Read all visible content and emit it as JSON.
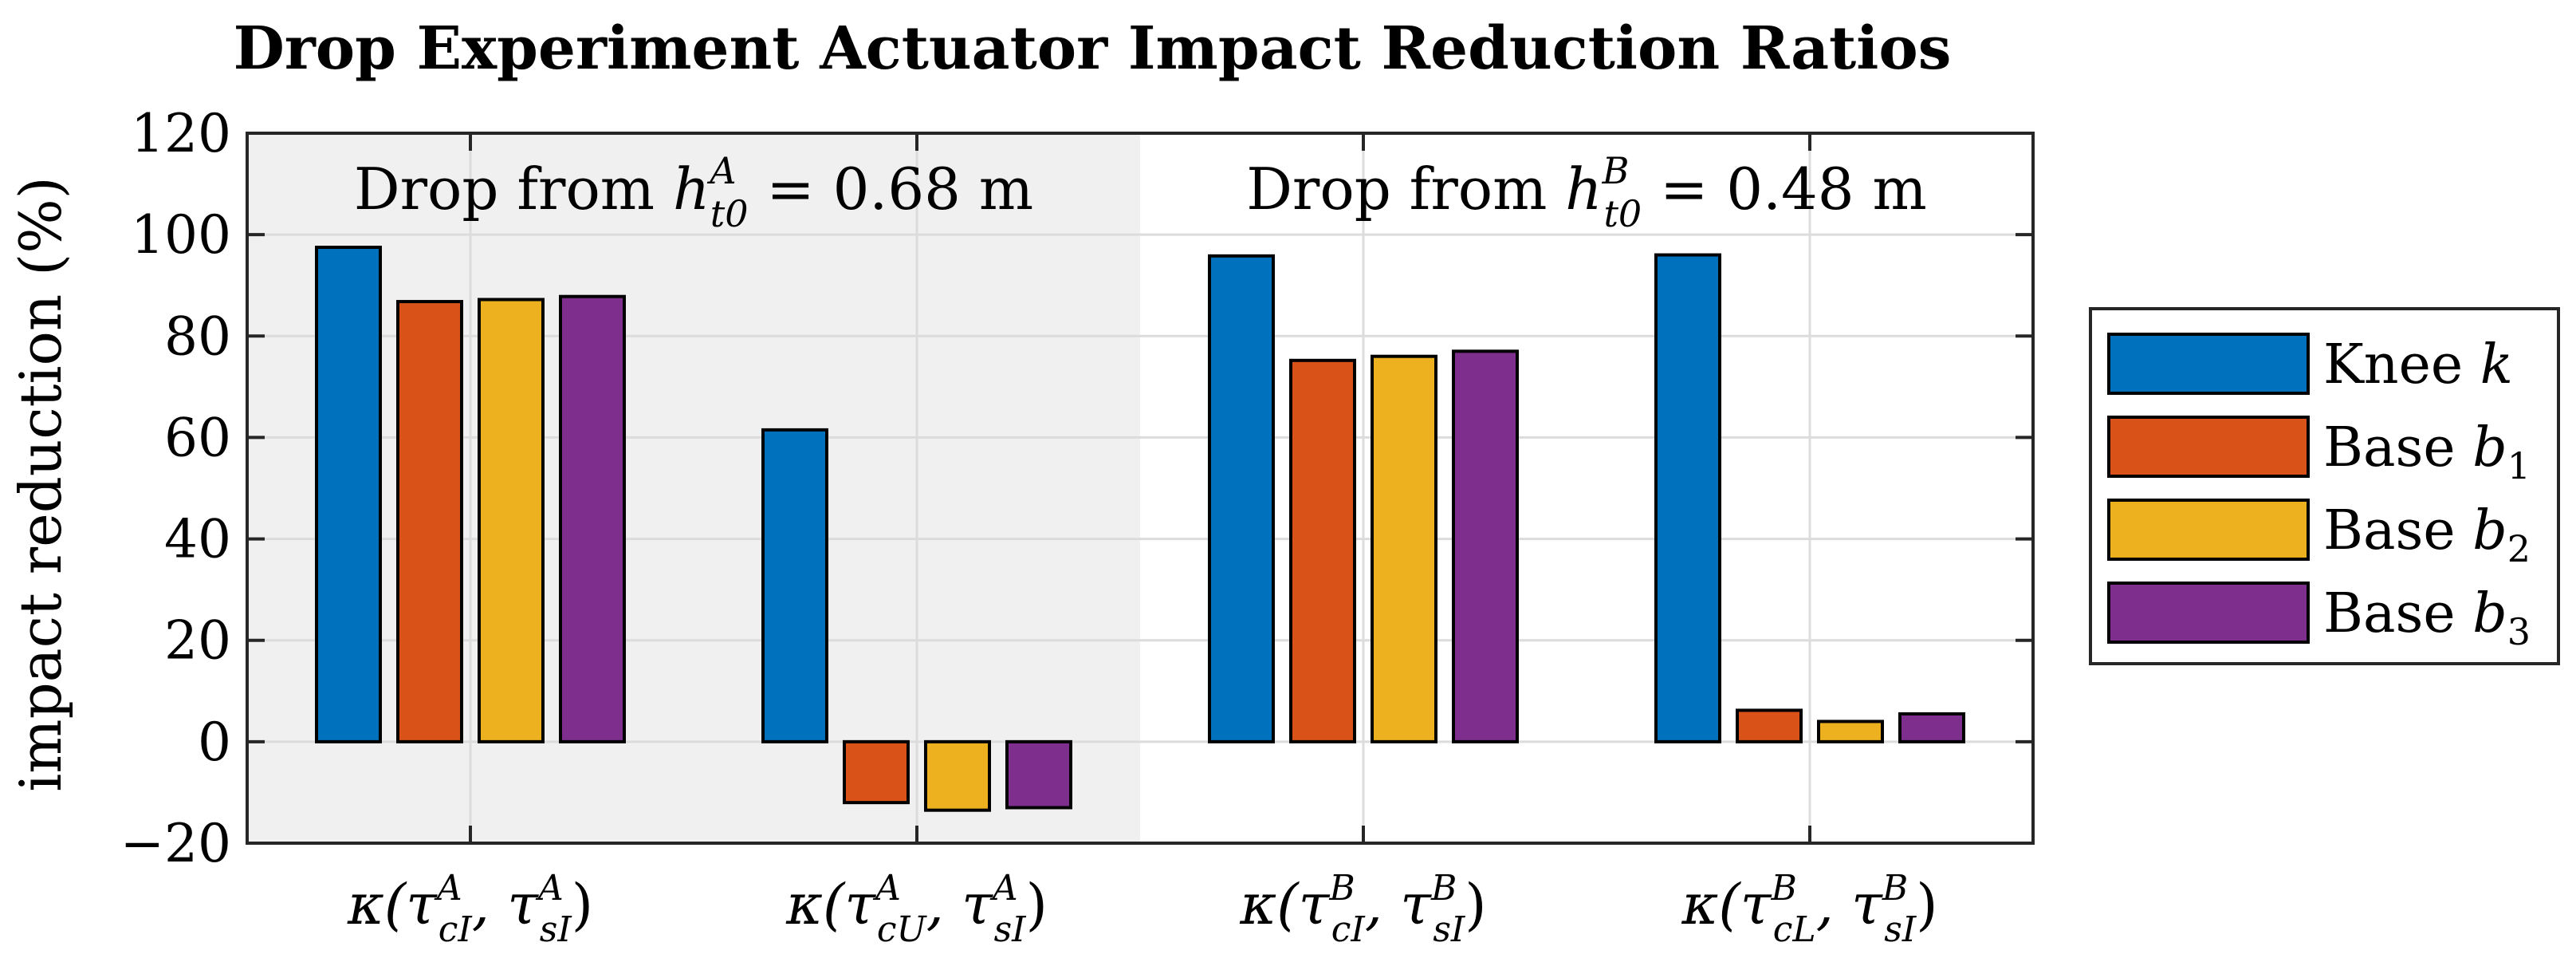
{
  "chart_data": {
    "type": "bar",
    "title": "Drop Experiment Actuator Impact Reduction Ratios",
    "xlabel": "",
    "ylabel": "impact reduction (%)",
    "ylim": [
      -20,
      120
    ],
    "yticks": [
      "−20",
      "0",
      "20",
      "40",
      "60",
      "80",
      "100",
      "120"
    ],
    "ytick_values": [
      -20,
      0,
      20,
      40,
      60,
      80,
      100,
      120
    ],
    "grid": true,
    "categories": [
      {
        "pre": "κ(τ",
        "sup1": "A",
        "sub1": "cI",
        "mid": ", τ",
        "sup2": "A",
        "sub2": "sI",
        "post": ")"
      },
      {
        "pre": "κ(τ",
        "sup1": "A",
        "sub1": "cU",
        "mid": ", τ",
        "sup2": "A",
        "sub2": "sI",
        "post": ")"
      },
      {
        "pre": "κ(τ",
        "sup1": "B",
        "sub1": "cI",
        "mid": ", τ",
        "sup2": "B",
        "sub2": "sI",
        "post": ")"
      },
      {
        "pre": "κ(τ",
        "sup1": "B",
        "sub1": "cL",
        "mid": ", τ",
        "sup2": "B",
        "sub2": "sI",
        "post": ")"
      }
    ],
    "series": [
      {
        "name": "Knee k",
        "label": "Knee",
        "var": "k",
        "sub": "",
        "color": "#0072BD",
        "values": [
          97.5,
          61.5,
          95.8,
          96.0
        ]
      },
      {
        "name": "Base b1",
        "label": "Base",
        "var": "b",
        "sub": "1",
        "color": "#D95319",
        "values": [
          86.8,
          -12.0,
          75.2,
          6.2
        ]
      },
      {
        "name": "Base b2",
        "label": "Base",
        "var": "b",
        "sub": "2",
        "color": "#EDB120",
        "values": [
          87.2,
          -13.5,
          76.0,
          4.0
        ]
      },
      {
        "name": "Base b3",
        "label": "Base",
        "var": "b",
        "sub": "3",
        "color": "#7E2F8E",
        "values": [
          87.8,
          -13.0,
          77.0,
          5.5
        ]
      }
    ],
    "annotations": [
      {
        "prefix": "Drop from",
        "var": "h",
        "sup": "A",
        "sub": "t0",
        "rest": " = 0.68 m"
      },
      {
        "prefix": "Drop from",
        "var": "h",
        "sup": "B",
        "sub": "t0",
        "rest": " = 0.48 m"
      }
    ],
    "shaded_region": {
      "categories": [
        0,
        1
      ],
      "color": "#F0F0F0"
    },
    "legend_position": "outside-right"
  }
}
